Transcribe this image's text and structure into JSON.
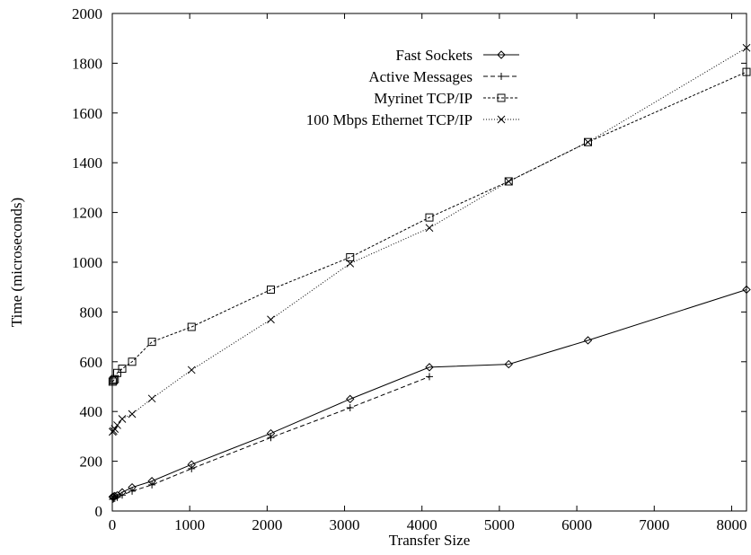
{
  "chart_data": {
    "type": "line",
    "title": "",
    "xlabel": "Transfer Size",
    "ylabel": "Time (microseconds)",
    "xlim": [
      0,
      8192
    ],
    "ylim": [
      0,
      2000
    ],
    "x_ticks": [
      0,
      1000,
      2000,
      3000,
      4000,
      5000,
      6000,
      7000,
      8000
    ],
    "y_ticks": [
      0,
      200,
      400,
      600,
      800,
      1000,
      1200,
      1400,
      1600,
      1800,
      2000
    ],
    "grid": false,
    "legend_position": "top-right",
    "series": [
      {
        "name": "Fast Sockets",
        "marker": "diamond",
        "line_style": "solid",
        "x": [
          4,
          16,
          32,
          64,
          128,
          256,
          512,
          1024,
          2048,
          3072,
          4096,
          5120,
          6144,
          8192
        ],
        "y": [
          57,
          58,
          60,
          63,
          75,
          95,
          120,
          187,
          312,
          450,
          578,
          590,
          686,
          890
        ]
      },
      {
        "name": "Active Messages",
        "marker": "plus",
        "line_style": "dashed",
        "x": [
          4,
          16,
          32,
          64,
          128,
          256,
          512,
          1024,
          2048,
          3072,
          4096
        ],
        "y": [
          47,
          49,
          51,
          55,
          64,
          80,
          105,
          170,
          295,
          415,
          540
        ]
      },
      {
        "name": "Myrinet TCP/IP",
        "marker": "square",
        "line_style": "dashed-fine",
        "x": [
          4,
          16,
          32,
          64,
          128,
          256,
          512,
          1024,
          2048,
          3072,
          4096,
          5120,
          6144,
          8192
        ],
        "y": [
          520,
          525,
          530,
          555,
          572,
          600,
          680,
          740,
          890,
          1020,
          1180,
          1325,
          1483,
          1765
        ]
      },
      {
        "name": "100 Mbps Ethernet TCP/IP",
        "marker": "cross",
        "line_style": "dotted",
        "x": [
          4,
          16,
          32,
          64,
          128,
          256,
          512,
          1024,
          2048,
          3072,
          4096,
          5120,
          6144,
          8192
        ],
        "y": [
          318,
          322,
          330,
          345,
          370,
          390,
          452,
          567,
          770,
          995,
          1138,
          1325,
          1483,
          1862
        ]
      }
    ]
  }
}
